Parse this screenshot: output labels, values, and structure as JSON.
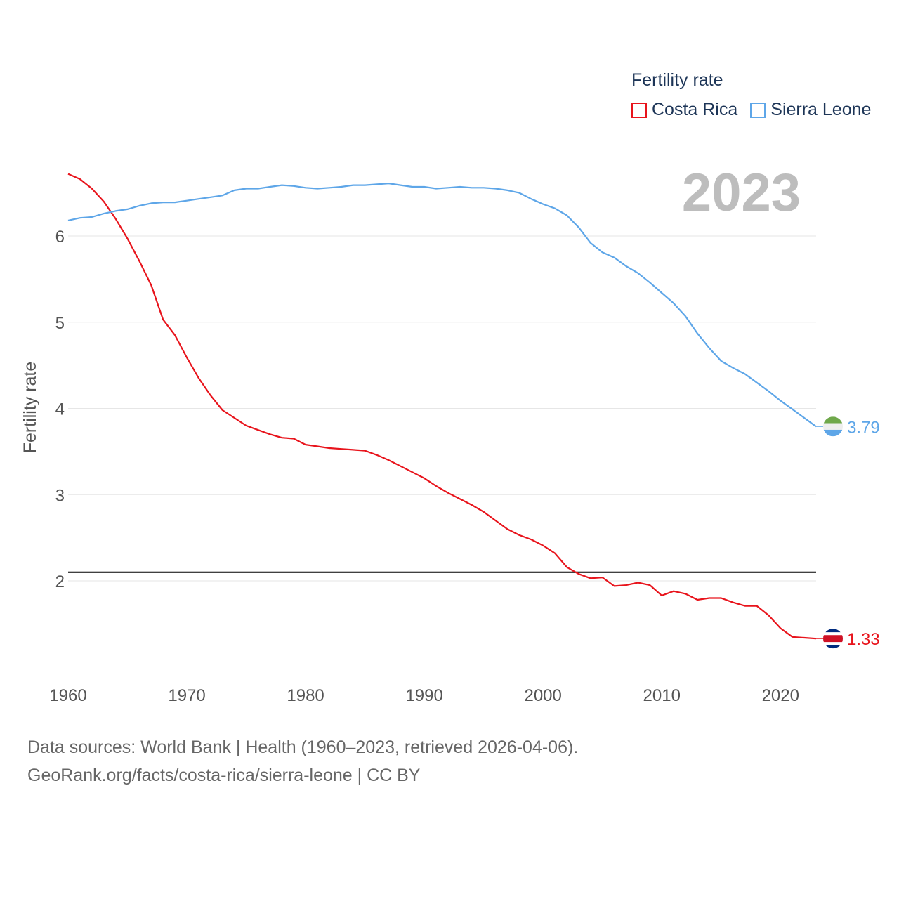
{
  "chart_data": {
    "type": "line",
    "title": "2023",
    "ylabel": "Fertility rate",
    "xlabel": "",
    "legend_title": "Fertility rate",
    "xlim": [
      1960,
      2023
    ],
    "ylim": [
      1.0,
      7.0
    ],
    "x_ticks": [
      1960,
      1970,
      1980,
      1990,
      2000,
      2010,
      2020
    ],
    "y_ticks": [
      2,
      3,
      4,
      5,
      6
    ],
    "reference_line": 2.1,
    "x": [
      1960,
      1961,
      1962,
      1963,
      1964,
      1965,
      1966,
      1967,
      1968,
      1969,
      1970,
      1971,
      1972,
      1973,
      1974,
      1975,
      1976,
      1977,
      1978,
      1979,
      1980,
      1981,
      1982,
      1983,
      1984,
      1985,
      1986,
      1987,
      1988,
      1989,
      1990,
      1991,
      1992,
      1993,
      1994,
      1995,
      1996,
      1997,
      1998,
      1999,
      2000,
      2001,
      2002,
      2003,
      2004,
      2005,
      2006,
      2007,
      2008,
      2009,
      2010,
      2011,
      2012,
      2013,
      2014,
      2015,
      2016,
      2017,
      2018,
      2019,
      2020,
      2021,
      2022,
      2023
    ],
    "series": [
      {
        "name": "Costa Rica",
        "color": "#e8141c",
        "end_label": "1.33",
        "values": [
          6.72,
          6.66,
          6.55,
          6.4,
          6.2,
          5.97,
          5.71,
          5.43,
          5.03,
          4.85,
          4.59,
          4.35,
          4.15,
          3.98,
          3.89,
          3.8,
          3.75,
          3.7,
          3.66,
          3.65,
          3.58,
          3.56,
          3.54,
          3.53,
          3.52,
          3.51,
          3.46,
          3.4,
          3.33,
          3.26,
          3.19,
          3.1,
          3.02,
          2.95,
          2.88,
          2.8,
          2.7,
          2.6,
          2.53,
          2.48,
          2.41,
          2.32,
          2.16,
          2.08,
          2.03,
          2.04,
          1.94,
          1.95,
          1.98,
          1.95,
          1.83,
          1.88,
          1.85,
          1.78,
          1.8,
          1.8,
          1.75,
          1.71,
          1.71,
          1.6,
          1.45,
          1.35,
          1.34,
          1.33
        ]
      },
      {
        "name": "Sierra Leone",
        "color": "#5ea6e8",
        "end_label": "3.79",
        "values": [
          6.18,
          6.21,
          6.22,
          6.26,
          6.29,
          6.31,
          6.35,
          6.38,
          6.39,
          6.39,
          6.41,
          6.43,
          6.45,
          6.47,
          6.53,
          6.55,
          6.55,
          6.57,
          6.59,
          6.58,
          6.56,
          6.55,
          6.56,
          6.57,
          6.59,
          6.59,
          6.6,
          6.61,
          6.59,
          6.57,
          6.57,
          6.55,
          6.56,
          6.57,
          6.56,
          6.56,
          6.55,
          6.53,
          6.5,
          6.43,
          6.37,
          6.32,
          6.24,
          6.1,
          5.92,
          5.81,
          5.75,
          5.65,
          5.57,
          5.46,
          5.34,
          5.22,
          5.07,
          4.87,
          4.7,
          4.55,
          4.47,
          4.4,
          4.3,
          4.2,
          4.09,
          3.99,
          3.89,
          3.79
        ]
      }
    ]
  },
  "legend": {
    "title": "Fertility rate",
    "items": [
      "Costa Rica",
      "Sierra Leone"
    ]
  },
  "source": {
    "line1": "Data sources: World Bank | Health (1960–2023, retrieved 2026-04-06).",
    "line2": "GeoRank.org/facts/costa-rica/sierra-leone | CC BY"
  }
}
